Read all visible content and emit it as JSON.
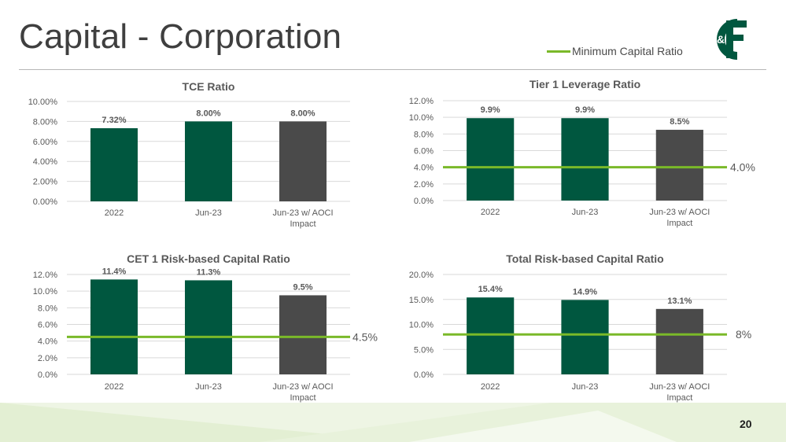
{
  "page": {
    "title": "Capital - Corporation",
    "legend_label": "Minimum Capital Ratio",
    "page_number": "20",
    "logo_text": "C&F"
  },
  "colors": {
    "green_bar": "#00573f",
    "gray_bar": "#4a4a4a",
    "min_line": "#7ab929",
    "grid": "#d9d9d9",
    "label": "#595959"
  },
  "chart_data": [
    {
      "type": "bar",
      "title": "TCE Ratio",
      "categories": [
        "2022",
        "Jun-23",
        "Jun-23 w/ AOCI Impact"
      ],
      "values": [
        7.32,
        8.0,
        8.0
      ],
      "data_labels": [
        "7.32%",
        "8.00%",
        "8.00%"
      ],
      "ylim": [
        0,
        10
      ],
      "yticks": [
        0,
        2,
        4,
        6,
        8,
        10
      ],
      "ytick_labels": [
        "0.00%",
        "2.00%",
        "4.00%",
        "6.00%",
        "8.00%",
        "10.00%"
      ],
      "min_ratio": null,
      "min_ratio_label": ""
    },
    {
      "type": "bar",
      "title": "Tier 1 Leverage Ratio",
      "categories": [
        "2022",
        "Jun-23",
        "Jun-23 w/ AOCI Impact"
      ],
      "values": [
        9.9,
        9.9,
        8.5
      ],
      "data_labels": [
        "9.9%",
        "9.9%",
        "8.5%"
      ],
      "ylim": [
        0,
        12
      ],
      "yticks": [
        0,
        2,
        4,
        6,
        8,
        10,
        12
      ],
      "ytick_labels": [
        "0.0%",
        "2.0%",
        "4.0%",
        "6.0%",
        "8.0%",
        "10.0%",
        "12.0%"
      ],
      "min_ratio": 4.0,
      "min_ratio_label": "4.0%"
    },
    {
      "type": "bar",
      "title": "CET 1 Risk-based Capital Ratio",
      "categories": [
        "2022",
        "Jun-23",
        "Jun-23 w/ AOCI Impact"
      ],
      "values": [
        11.4,
        11.3,
        9.5
      ],
      "data_labels": [
        "11.4%",
        "11.3%",
        "9.5%"
      ],
      "ylim": [
        0,
        12
      ],
      "yticks": [
        0,
        2,
        4,
        6,
        8,
        10,
        12
      ],
      "ytick_labels": [
        "0.0%",
        "2.0%",
        "4.0%",
        "6.0%",
        "8.0%",
        "10.0%",
        "12.0%"
      ],
      "min_ratio": 4.5,
      "min_ratio_label": "4.5%"
    },
    {
      "type": "bar",
      "title": "Total Risk-based Capital Ratio",
      "categories": [
        "2022",
        "Jun-23",
        "Jun-23 w/ AOCI Impact"
      ],
      "values": [
        15.4,
        14.9,
        13.1
      ],
      "data_labels": [
        "15.4%",
        "14.9%",
        "13.1%"
      ],
      "ylim": [
        0,
        20
      ],
      "yticks": [
        0,
        5,
        10,
        15,
        20
      ],
      "ytick_labels": [
        "0.0%",
        "5.0%",
        "10.0%",
        "15.0%",
        "20.0%"
      ],
      "min_ratio": 8,
      "min_ratio_label": "8%"
    }
  ]
}
